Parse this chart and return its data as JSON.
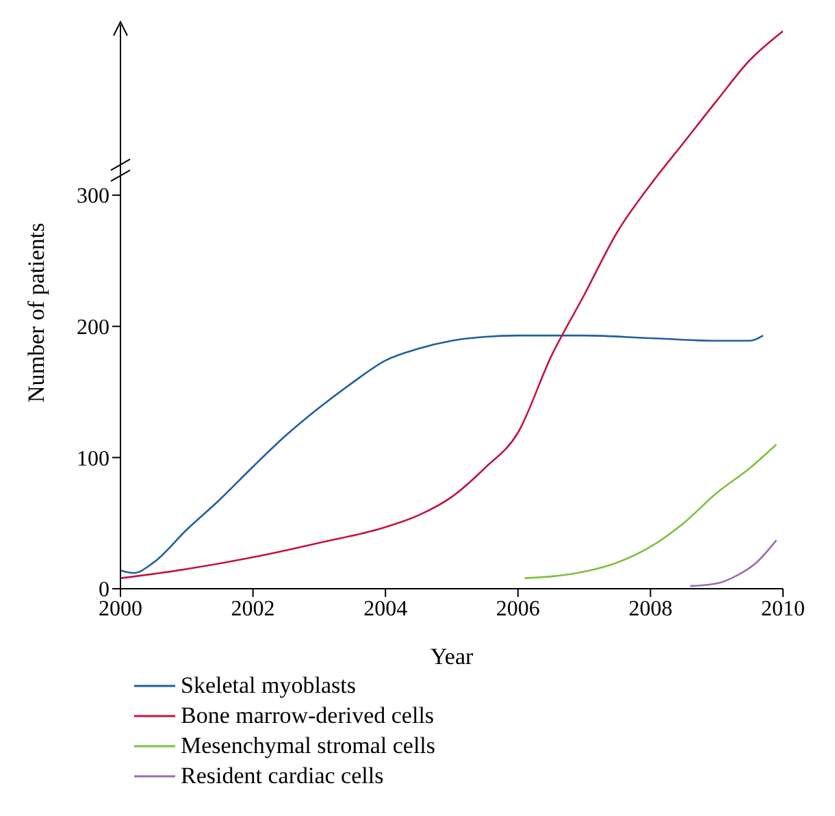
{
  "chart_data": {
    "type": "line",
    "xlabel": "Year",
    "ylabel": "Number of patients",
    "xlim": [
      2000,
      2010
    ],
    "xticks": [
      2000,
      2002,
      2004,
      2006,
      2008,
      2010
    ],
    "ylim": [
      0,
      430
    ],
    "yticks": [
      0,
      100,
      200,
      300
    ],
    "grid": false,
    "legend": "bottom",
    "marker": "none",
    "line_style": "solid",
    "series": [
      {
        "name": "Skeletal myoblasts",
        "color": "#1f5fa0",
        "x": [
          2000,
          2000.2,
          2000.5,
          2001,
          2001.5,
          2002,
          2002.5,
          2003,
          2003.5,
          2004,
          2004.5,
          2005,
          2005.5,
          2006,
          2007,
          2008,
          2009,
          2009.5,
          2009.7
        ],
        "values": [
          14,
          12,
          20,
          45,
          68,
          93,
          117,
          138,
          157,
          174,
          183,
          189,
          192,
          193,
          193,
          191,
          189,
          189,
          193
        ]
      },
      {
        "name": "Bone marrow-derived cells",
        "color": "#c0153f",
        "x": [
          2000,
          2001,
          2002,
          2003,
          2004,
          2004.5,
          2005,
          2005.5,
          2006,
          2006.5,
          2007,
          2007.5,
          2008,
          2008.5,
          2009,
          2009.5,
          2009.9,
          2010
        ],
        "values": [
          8,
          15,
          24,
          35,
          47,
          56,
          70,
          92,
          119,
          177,
          224,
          272,
          308,
          340,
          372,
          403,
          421,
          425
        ]
      },
      {
        "name": "Mesenchymal stromal cells",
        "color": "#7fbf3f",
        "x": [
          2006.1,
          2007,
          2007.5,
          2008,
          2008.5,
          2009,
          2009.5,
          2009.9
        ],
        "values": [
          8,
          13,
          20,
          32,
          50,
          73,
          92,
          110
        ]
      },
      {
        "name": "Resident cardiac cells",
        "color": "#9b6bb5",
        "x": [
          2008.6,
          2009,
          2009.3,
          2009.6,
          2009.9
        ],
        "values": [
          2,
          4,
          10,
          20,
          37
        ]
      }
    ]
  }
}
